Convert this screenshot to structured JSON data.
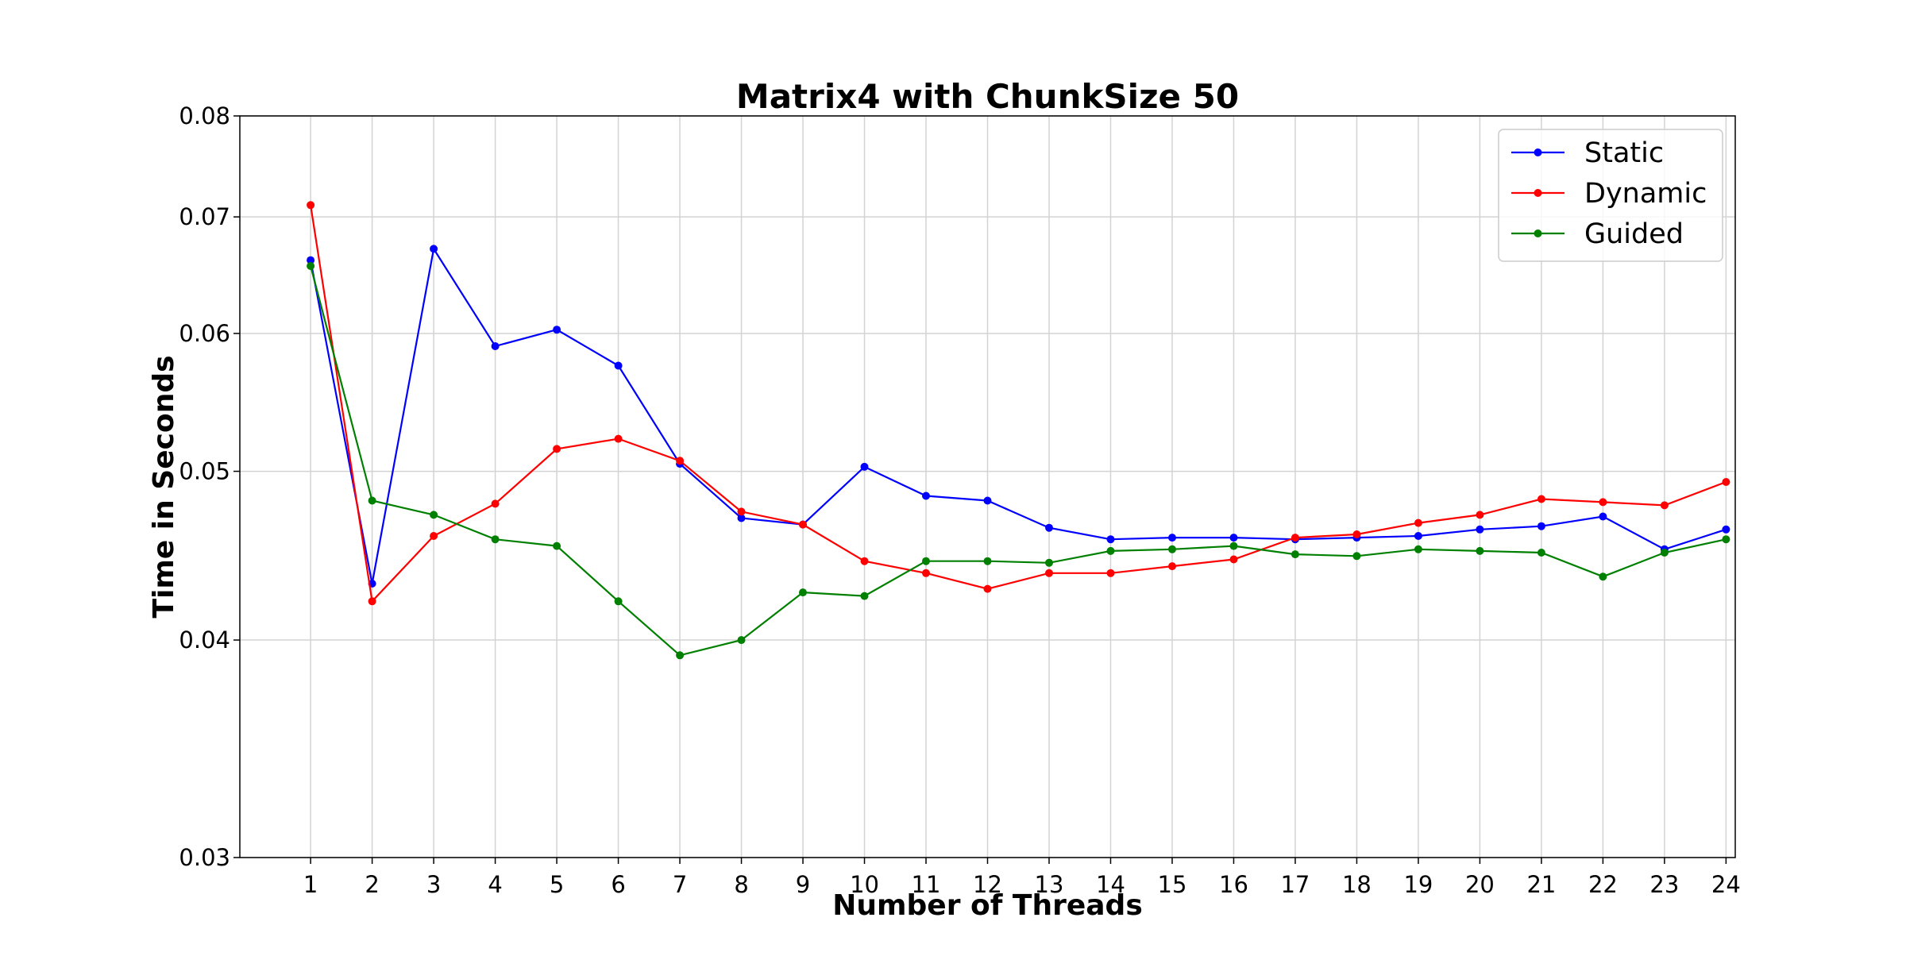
{
  "chart_data": {
    "type": "line",
    "title": "Matrix4 with ChunkSize 50",
    "xlabel": "Number of Threads",
    "ylabel": "Time in Seconds",
    "yscale": "log",
    "ylim": [
      0.03,
      0.08
    ],
    "xlim": [
      -0.15,
      24.15
    ],
    "yticks": [
      "0.03",
      "0.04",
      "0.05",
      "0.06",
      "0.07",
      "0.08"
    ],
    "grid": true,
    "legend_position": "top-right",
    "x": [
      1,
      2,
      3,
      4,
      5,
      6,
      7,
      8,
      9,
      10,
      11,
      12,
      13,
      14,
      15,
      16,
      17,
      18,
      19,
      20,
      21,
      22,
      23,
      24
    ],
    "series": [
      {
        "name": "Static",
        "color": "#0000ff",
        "values": [
          0.0661,
          0.0431,
          0.0671,
          0.059,
          0.0603,
          0.0575,
          0.0505,
          0.047,
          0.0466,
          0.0503,
          0.0484,
          0.0481,
          0.0464,
          0.0457,
          0.0458,
          0.0458,
          0.0457,
          0.0458,
          0.0459,
          0.0463,
          0.0465,
          0.0471,
          0.0451,
          0.0463
        ]
      },
      {
        "name": "Dynamic",
        "color": "#ff0000",
        "values": [
          0.0711,
          0.0421,
          0.0459,
          0.0479,
          0.0515,
          0.0522,
          0.0507,
          0.0474,
          0.0466,
          0.0444,
          0.0437,
          0.0428,
          0.0437,
          0.0437,
          0.0441,
          0.0445,
          0.0458,
          0.046,
          0.0467,
          0.0472,
          0.0482,
          0.048,
          0.0478,
          0.0493
        ]
      },
      {
        "name": "Guided",
        "color": "#008000",
        "values": [
          0.0656,
          0.0481,
          0.0472,
          0.0457,
          0.0453,
          0.0421,
          0.0392,
          0.04,
          0.0426,
          0.0424,
          0.0444,
          0.0444,
          0.0443,
          0.045,
          0.0451,
          0.0453,
          0.0448,
          0.0447,
          0.0451,
          0.045,
          0.0449,
          0.0435,
          0.0449,
          0.0457
        ]
      }
    ]
  }
}
